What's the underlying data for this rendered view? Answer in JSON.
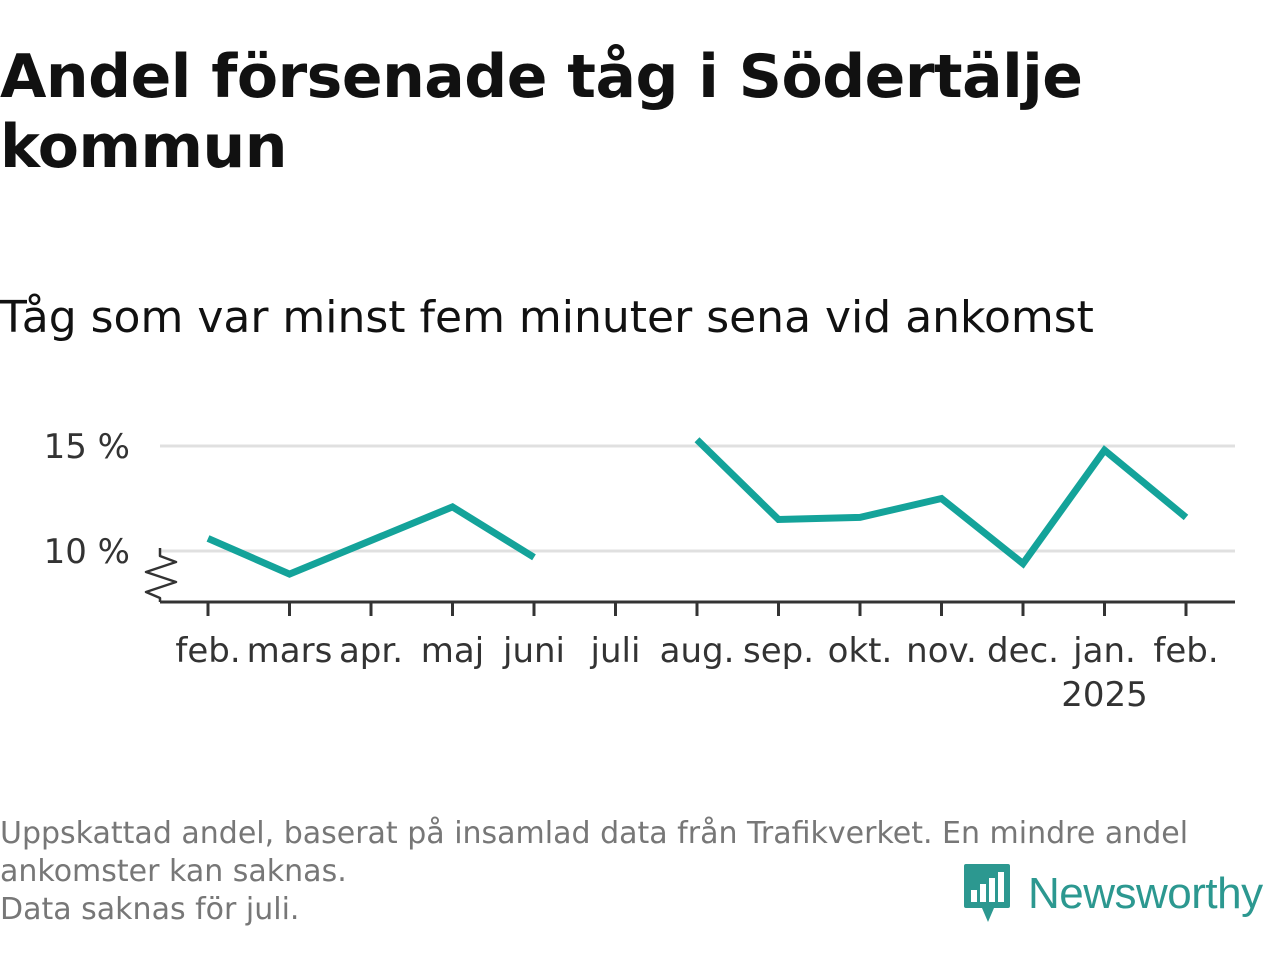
{
  "title": "Andel försenade tåg i Södertälje kommun",
  "subtitle": "Tåg som var minst fem minuter sena vid ankomst",
  "colors": {
    "line": "#14a39a",
    "grid": "#e0e0e0",
    "axis": "#333333",
    "title": "#111111",
    "footnote": "#777777",
    "brand": "#2c9890"
  },
  "chart_data": {
    "type": "line",
    "categories": [
      "feb.",
      "mars",
      "apr.",
      "maj",
      "juni",
      "juli",
      "aug.",
      "sep.",
      "okt.",
      "nov.",
      "dec.",
      "jan.",
      "feb."
    ],
    "year_label": {
      "category_index": 11,
      "text": "2025"
    },
    "series": [
      {
        "values": [
          10.6,
          8.9,
          10.5,
          12.1,
          9.7,
          null,
          15.3,
          11.5,
          11.6,
          12.5,
          9.4,
          14.8,
          11.6
        ]
      }
    ],
    "y_ticks": [
      {
        "value": 10,
        "label": "10 %"
      },
      {
        "value": 15,
        "label": "15 %"
      }
    ],
    "ylim": [
      7.6,
      16.2
    ],
    "y_axis_break": true,
    "grid": "horizontal",
    "xlabel": "",
    "ylabel": ""
  },
  "footnote": {
    "line1": "Uppskattad andel, baserat på insamlad data från Trafikverket. En mindre andel ankomster kan saknas.",
    "line2": "Data saknas för juli."
  },
  "brand": {
    "name": "Newsworthy",
    "icon": "newsworthy-logo-icon"
  }
}
